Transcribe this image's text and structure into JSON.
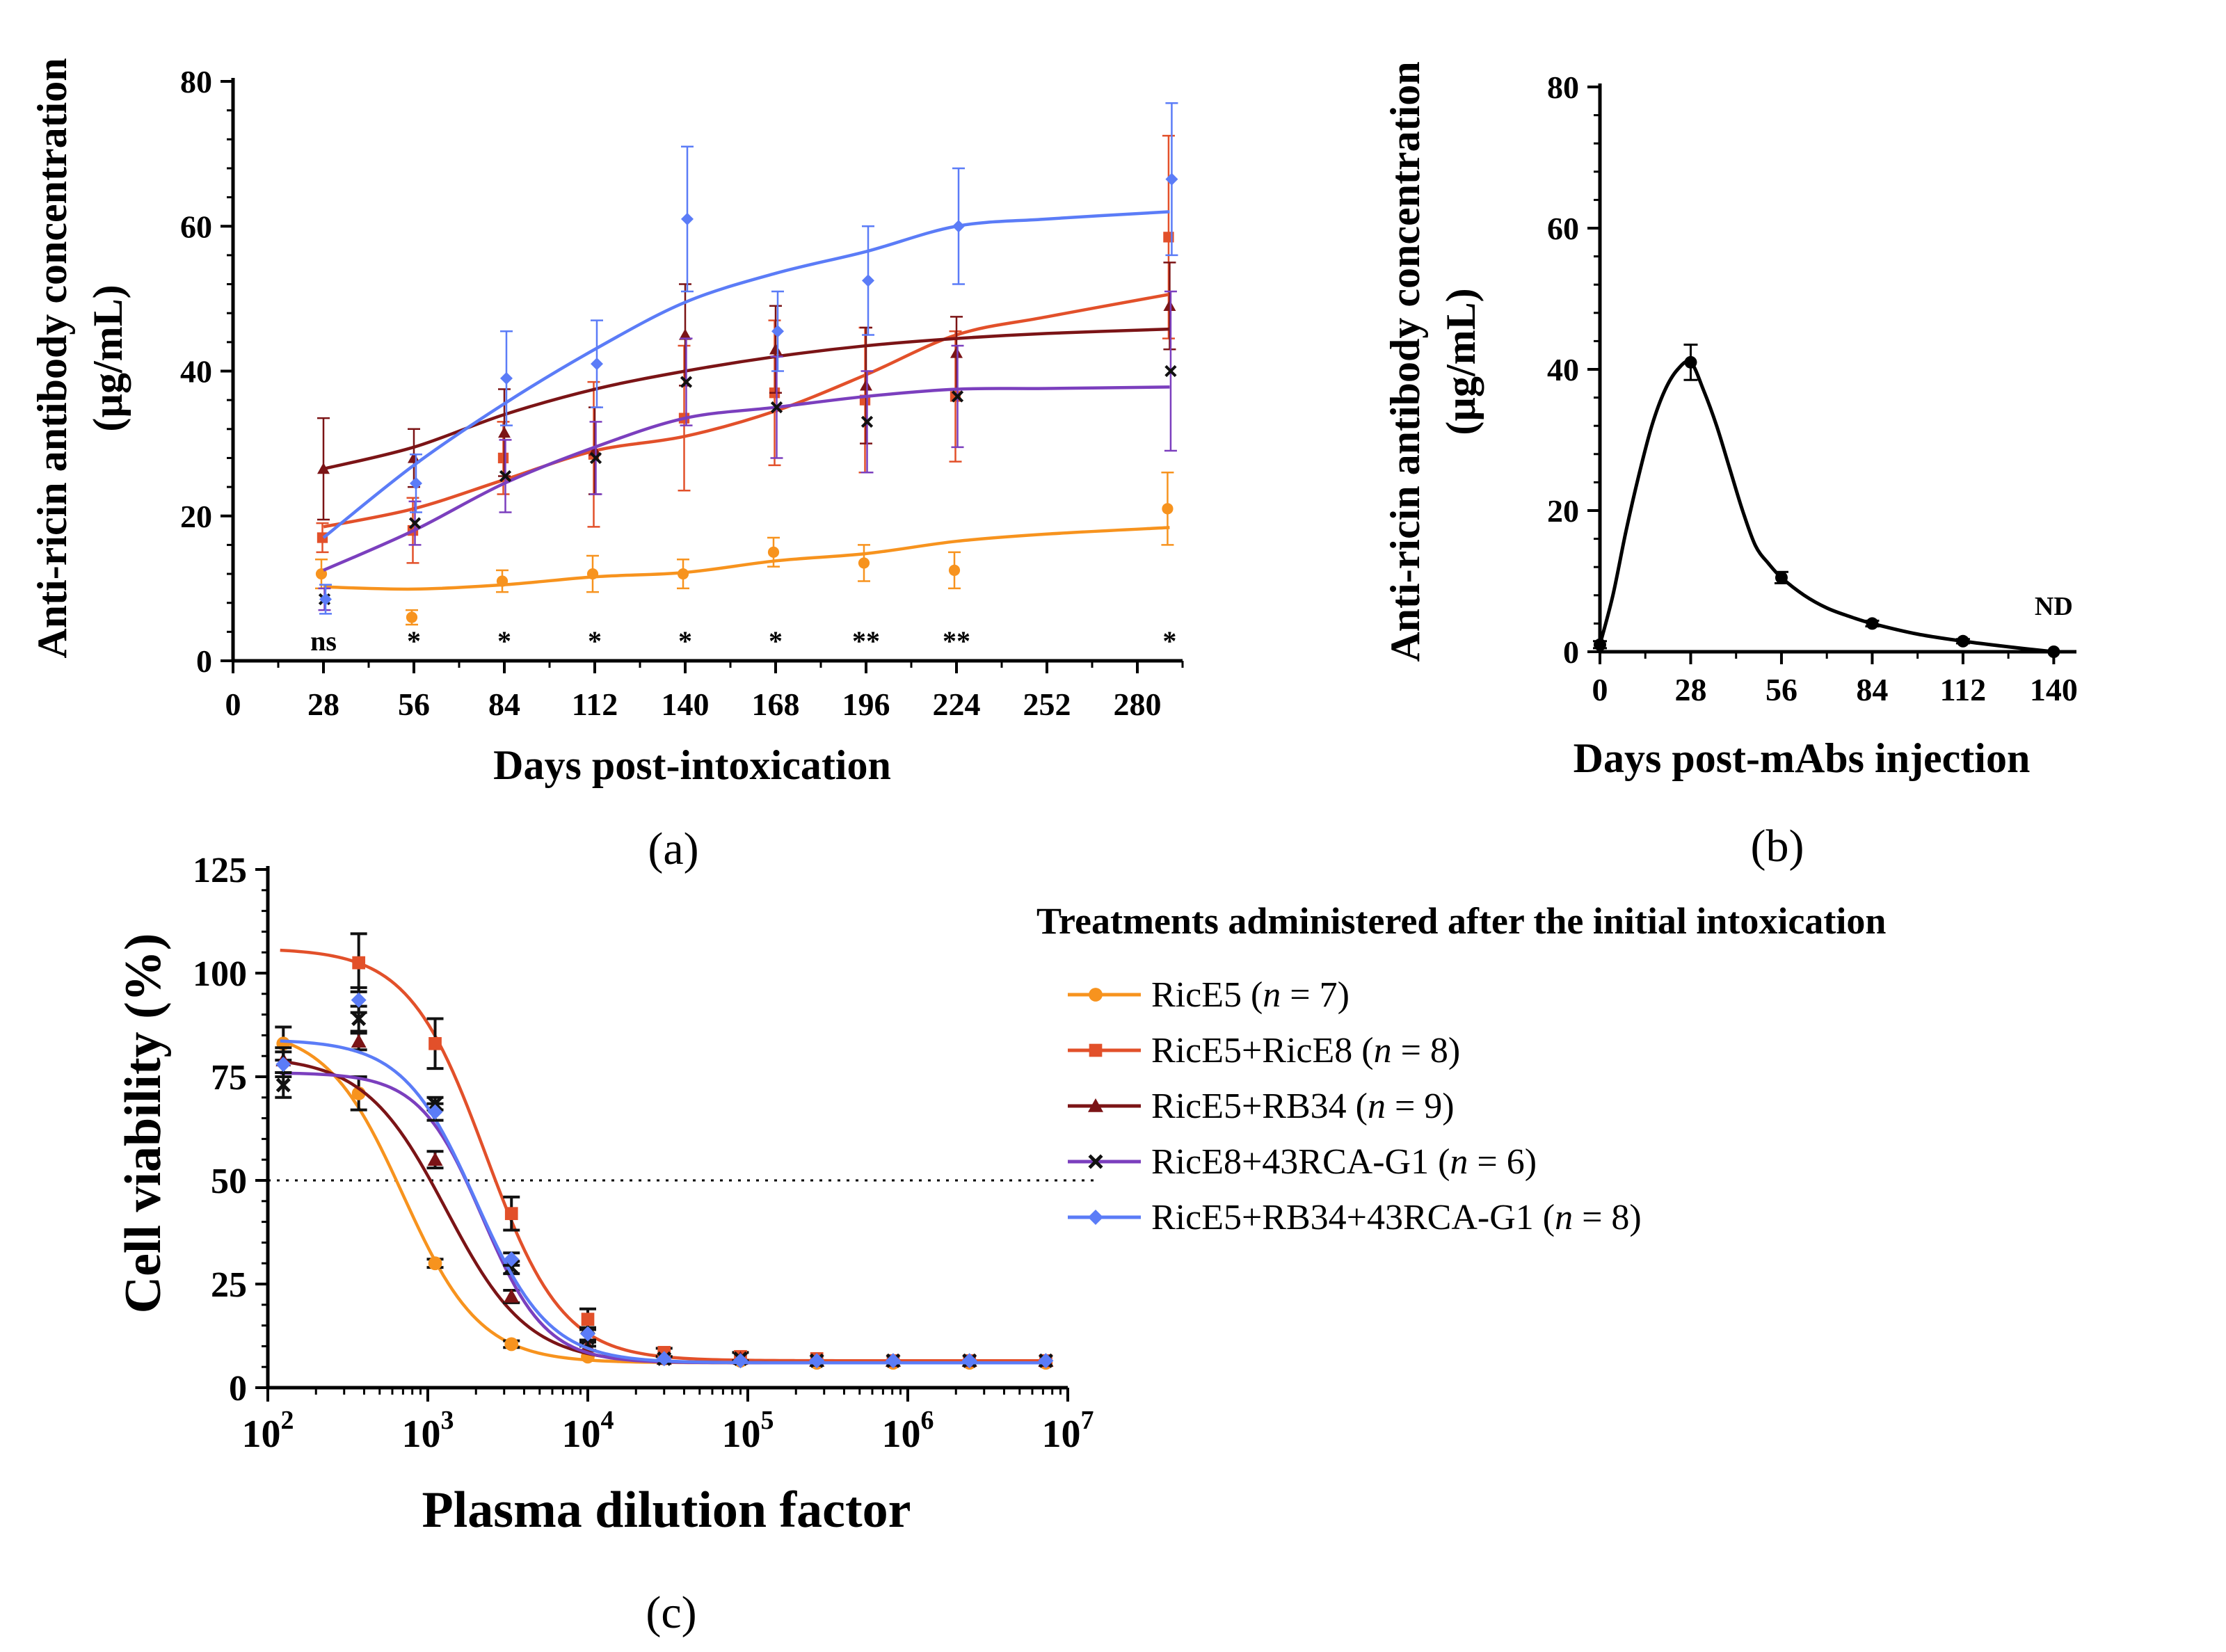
{
  "chart_data": [
    {
      "panel": "(a)",
      "type": "line",
      "xlabel": "Days post-intoxication",
      "ylabel_line1": "Anti-ricin antibody concentration",
      "ylabel_line2": "(µg/mL)",
      "xlim": [
        0,
        294
      ],
      "ylim": [
        0,
        80
      ],
      "xticks": [
        "0",
        "28",
        "56",
        "84",
        "112",
        "140",
        "168",
        "196",
        "224",
        "252",
        "280"
      ],
      "yticks": [
        "0",
        "20",
        "40",
        "60",
        "80"
      ],
      "significance": [
        {
          "x": 28,
          "label": "ns"
        },
        {
          "x": 56,
          "label": "*"
        },
        {
          "x": 84,
          "label": "*"
        },
        {
          "x": 112,
          "label": "*"
        },
        {
          "x": 140,
          "label": "*"
        },
        {
          "x": 168,
          "label": "*"
        },
        {
          "x": 196,
          "label": "**"
        },
        {
          "x": 224,
          "label": "**"
        },
        {
          "x": 290,
          "label": "*"
        }
      ],
      "series": [
        {
          "name": "RicE5",
          "color": "#F7931E",
          "marker": "circle",
          "x": [
            28,
            56,
            84,
            112,
            140,
            168,
            196,
            224,
            290
          ],
          "y": [
            12,
            6,
            11,
            12,
            12,
            15,
            13.5,
            12.5,
            21
          ],
          "err": [
            2,
            1,
            1.5,
            2.5,
            2,
            2,
            2.5,
            2.5,
            5
          ],
          "fit_x": [
            28,
            56,
            84,
            112,
            140,
            168,
            196,
            224,
            252,
            290
          ],
          "fit_y": [
            10.2,
            9.9,
            10.5,
            11.6,
            12.2,
            13.8,
            14.8,
            16.5,
            17.5,
            18.4
          ]
        },
        {
          "name": "RicE5+RicE8",
          "color": "#E2502A",
          "marker": "square",
          "x": [
            28,
            56,
            84,
            112,
            140,
            168,
            196,
            224,
            290
          ],
          "y": [
            17,
            18,
            28,
            28.5,
            33.5,
            37,
            36,
            36.5,
            58.5
          ],
          "err": [
            2,
            4.5,
            5,
            10,
            10,
            10,
            10,
            9,
            14
          ],
          "fit_x": [
            28,
            56,
            84,
            112,
            140,
            168,
            196,
            224,
            252,
            290
          ],
          "fit_y": [
            18.5,
            21,
            25,
            29,
            31,
            34.5,
            39.5,
            45,
            47.5,
            50.6
          ]
        },
        {
          "name": "RicE5+RB34",
          "color": "#7B1416",
          "marker": "triangle",
          "x": [
            28,
            56,
            84,
            112,
            140,
            168,
            196,
            224,
            290
          ],
          "y": [
            26.5,
            28,
            31.5,
            29,
            45,
            43,
            38,
            42.5,
            49
          ],
          "err": [
            7,
            4,
            6,
            6,
            7,
            6,
            8,
            5,
            6
          ],
          "fit_x": [
            28,
            56,
            84,
            112,
            140,
            168,
            196,
            224,
            252,
            290
          ],
          "fit_y": [
            26.5,
            29.5,
            34,
            37.5,
            40,
            42,
            43.5,
            44.5,
            45.2,
            45.8
          ]
        },
        {
          "name": "RicE8+43RCA-G1",
          "color": "#7B3FBE",
          "marker": "x",
          "x": [
            28,
            56,
            84,
            112,
            140,
            168,
            196,
            224,
            290
          ],
          "y": [
            8.5,
            19,
            25.5,
            28,
            38.5,
            35,
            33,
            36.5,
            40
          ],
          "err": [
            1.5,
            3,
            5,
            5,
            6,
            7,
            7,
            7,
            11
          ],
          "fit_x": [
            28,
            56,
            84,
            112,
            140,
            168,
            196,
            224,
            252,
            290
          ],
          "fit_y": [
            12.5,
            18,
            24.5,
            29.5,
            33.5,
            35,
            36.5,
            37.5,
            37.6,
            37.8
          ]
        },
        {
          "name": "RicE5+RB34+43RCA-G1",
          "color": "#5B7CF7",
          "marker": "diamond",
          "x": [
            28,
            56,
            84,
            112,
            140,
            168,
            196,
            224,
            290
          ],
          "y": [
            8.5,
            24.5,
            39,
            41,
            61,
            45.5,
            52.5,
            60,
            66.5
          ],
          "err": [
            2,
            4,
            6.5,
            6,
            10,
            5.5,
            7.5,
            8,
            10.5
          ],
          "fit_x": [
            28,
            56,
            84,
            112,
            140,
            168,
            196,
            224,
            252,
            290
          ],
          "fit_y": [
            17,
            27,
            35.5,
            43,
            49.5,
            53.5,
            56.5,
            60,
            61,
            62
          ]
        }
      ]
    },
    {
      "panel": "(b)",
      "type": "line",
      "xlabel": "Days post-mAbs injection",
      "ylabel_line1": "Anti-ricin antibody concentration",
      "ylabel_line2": "(µg/mL)",
      "xlim": [
        0,
        147
      ],
      "ylim": [
        0,
        80
      ],
      "xticks": [
        "0",
        "28",
        "56",
        "84",
        "112",
        "140"
      ],
      "yticks": [
        "0",
        "20",
        "40",
        "60",
        "80"
      ],
      "annotation": "ND",
      "points_x": [
        0,
        28,
        56,
        84,
        112,
        140
      ],
      "points_y": [
        1,
        41,
        10.5,
        4,
        1.5,
        0
      ],
      "points_err": [
        0.5,
        2.5,
        0.8,
        0.4,
        0.3,
        0
      ],
      "curve_x": [
        0,
        4,
        8,
        12,
        16,
        20,
        24,
        28,
        32,
        36,
        40,
        44,
        48,
        52,
        56,
        63,
        70,
        77,
        84,
        98,
        112,
        126,
        140
      ],
      "curve_y": [
        1,
        8,
        17,
        25,
        32,
        37,
        40,
        41,
        37,
        32,
        26,
        20,
        15,
        12.5,
        10.5,
        8,
        6.2,
        5,
        4,
        2.5,
        1.5,
        0.7,
        0
      ]
    },
    {
      "panel": "(c)",
      "type": "line",
      "xlabel": "Plasma dilution factor",
      "ylabel": "Cell viability (%)",
      "xscale": "log",
      "xlim": [
        100,
        10000000
      ],
      "ylim": [
        0,
        125
      ],
      "xtick_exponents": [
        "2",
        "3",
        "4",
        "5",
        "6",
        "7"
      ],
      "xtick_base": "10",
      "yticks": [
        "0",
        "25",
        "50",
        "75",
        "100",
        "125"
      ],
      "reference_line_y": 50,
      "legend_title": "Treatments administered after the initial intoxication",
      "x_points": [
        125,
        370,
        1111,
        3333,
        10000,
        30000,
        90000,
        270000,
        810000,
        2430000,
        7290000
      ],
      "series": [
        {
          "name": "RicE5",
          "n_text": "7",
          "color": "#F7931E",
          "marker": "circle",
          "y": [
            83,
            71,
            30,
            10.5,
            7.5,
            7,
            6.5,
            6,
            6,
            6,
            6
          ],
          "err": [
            4,
            4,
            1,
            0.8,
            0.5,
            0.5,
            0.5,
            0.5,
            0.5,
            0.5,
            0.5
          ],
          "top": 87,
          "bottom": 6,
          "ic50": 700,
          "hill": 1.8
        },
        {
          "name": "RicE5+RicE8",
          "n_text": "8",
          "color": "#E2502A",
          "marker": "square",
          "y": [
            null,
            102.5,
            83,
            42,
            16.5,
            8.5,
            7.5,
            7,
            6.5,
            6.5,
            6.5
          ],
          "err": [
            0,
            7,
            6,
            4,
            2.5,
            1,
            1,
            0.5,
            0.5,
            0.5,
            0.5
          ],
          "top": 106,
          "bottom": 6.5,
          "ic50": 2300,
          "hill": 1.8
        },
        {
          "name": "RicE5+RB34",
          "n_text": "9",
          "color": "#7B1416",
          "marker": "triangle",
          "y": [
            79,
            83.5,
            55,
            22,
            10,
            7,
            7,
            6.5,
            6.5,
            6.5,
            6.5
          ],
          "err": [
            3,
            2,
            2,
            1.5,
            1,
            0.5,
            0.5,
            0.5,
            0.5,
            0.5,
            0.5
          ],
          "top": 80,
          "bottom": 6,
          "ic50": 1300,
          "hill": 1.7
        },
        {
          "name": "RicE8+43RCA-G1",
          "n_text": "6",
          "color": "#7B3FBE",
          "marker": "x",
          "y": [
            73,
            89,
            68.5,
            29,
            12,
            7,
            7,
            6.5,
            6.5,
            6.5,
            6.5
          ],
          "err": [
            3,
            3,
            1.5,
            1.5,
            2,
            0.5,
            0.5,
            0.5,
            0.5,
            0.5,
            0.5
          ],
          "top": 76,
          "bottom": 6,
          "ic50": 2200,
          "hill": 2.2
        },
        {
          "name": "RicE5+RB34+43RCA-G1",
          "n_text": "8",
          "color": "#5B7CF7",
          "marker": "diamond",
          "y": [
            78,
            93.5,
            66.5,
            31,
            13,
            7,
            6.5,
            6.5,
            6.5,
            6.5,
            6.5
          ],
          "err": [
            3,
            3,
            2,
            1.5,
            1.5,
            0.5,
            0.5,
            0.5,
            0.5,
            0.5,
            0.5
          ],
          "top": 84,
          "bottom": 6,
          "ic50": 2000,
          "hill": 1.9
        }
      ]
    }
  ],
  "legend_n_prefix": "n",
  "legend_n_eq": " = "
}
